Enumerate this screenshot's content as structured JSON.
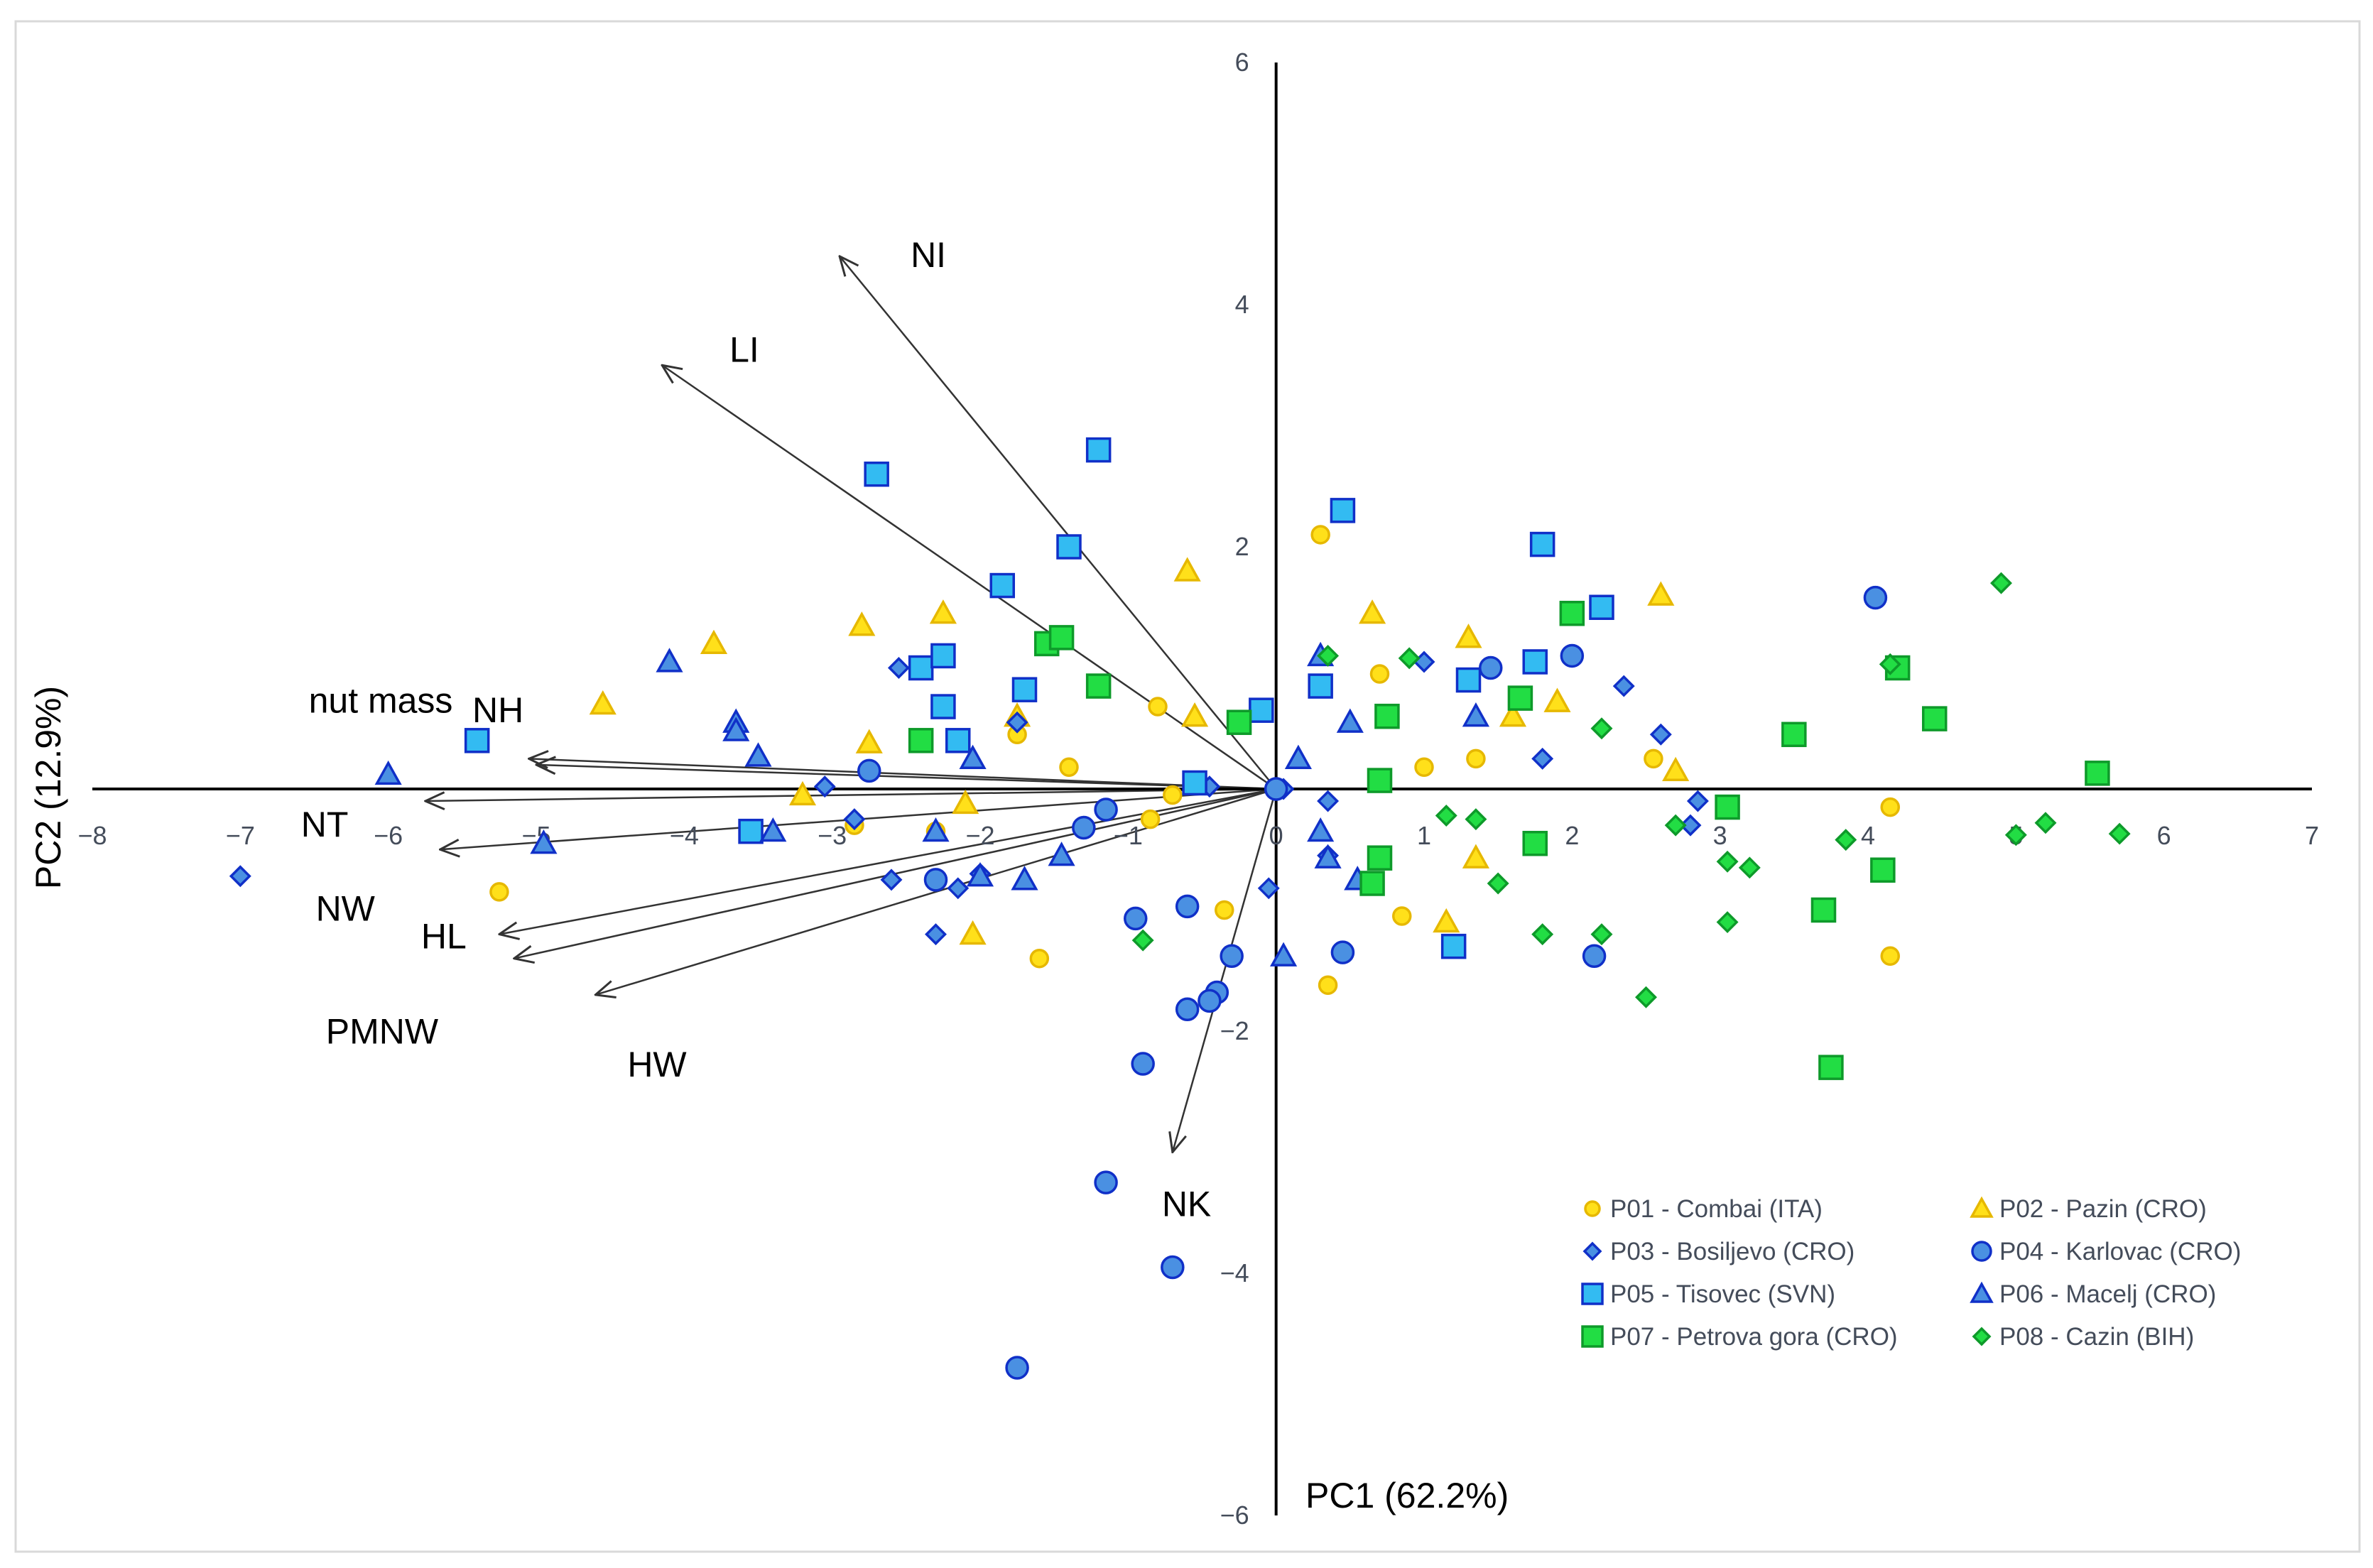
{
  "chart_data": {
    "type": "scatter",
    "subtype": "pca-biplot",
    "xlabel": "PC1 (62.2%)",
    "ylabel": "PC2 (12.9%)",
    "xlim": [
      -8,
      7
    ],
    "ylim": [
      -6,
      6
    ],
    "xticks": [
      -8,
      -7,
      -6,
      -5,
      -4,
      -3,
      -2,
      -1,
      0,
      1,
      2,
      3,
      4,
      5,
      6,
      7
    ],
    "yticks": [
      -6,
      -4,
      -2,
      2,
      4,
      6
    ],
    "x_tick_labels": [
      "−8",
      "−7",
      "−6",
      "−5",
      "−4",
      "−3",
      "−2",
      "−1",
      "0",
      "1",
      "2",
      "3",
      "4",
      "5",
      "6",
      "7"
    ],
    "y_tick_labels": [
      "−6",
      "−4",
      "−2",
      "2",
      "4",
      "6"
    ],
    "grid": false,
    "legend_position": "bottom-right",
    "loadings": [
      {
        "name": "NI",
        "x": -2.95,
        "y": 4.4
      },
      {
        "name": "LI",
        "x": -4.15,
        "y": 3.5
      },
      {
        "name": "NH",
        "x": -5.0,
        "y": 0.2
      },
      {
        "name": "nut mass",
        "x": -5.05,
        "y": 0.25
      },
      {
        "name": "NT",
        "x": -5.75,
        "y": -0.1
      },
      {
        "name": "NW",
        "x": -5.65,
        "y": -0.5
      },
      {
        "name": "HL",
        "x": -5.25,
        "y": -1.2
      },
      {
        "name": "PMNW",
        "x": -5.15,
        "y": -1.4
      },
      {
        "name": "HW",
        "x": -4.6,
        "y": -1.7
      },
      {
        "name": "NK",
        "x": -0.7,
        "y": -3.0
      }
    ],
    "series": [
      {
        "name": "P01 - Combai (ITA)",
        "marker": "circle",
        "color": "#FFE01A",
        "edge": "#E6B800",
        "points": [
          [
            0.3,
            2.1
          ],
          [
            0.7,
            0.95
          ],
          [
            1.35,
            0.25
          ],
          [
            1.0,
            0.18
          ],
          [
            -0.8,
            0.68
          ],
          [
            -1.75,
            0.45
          ],
          [
            -1.4,
            0.18
          ],
          [
            -0.7,
            -0.05
          ],
          [
            -0.85,
            -0.25
          ],
          [
            -2.85,
            -0.3
          ],
          [
            -5.25,
            -0.85
          ],
          [
            -2.3,
            -0.35
          ],
          [
            -0.35,
            -1.0
          ],
          [
            -1.6,
            -1.4
          ],
          [
            0.85,
            -1.05
          ],
          [
            0.35,
            -1.62
          ],
          [
            2.55,
            0.25
          ],
          [
            4.15,
            -0.15
          ],
          [
            4.15,
            -1.38
          ]
        ]
      },
      {
        "name": "P02 - Pazin (CRO)",
        "marker": "triangle",
        "color": "#FFE01A",
        "edge": "#E6B800",
        "points": [
          [
            -0.6,
            1.8
          ],
          [
            -2.25,
            1.45
          ],
          [
            -2.8,
            1.35
          ],
          [
            -3.8,
            1.2
          ],
          [
            -4.55,
            0.7
          ],
          [
            -2.75,
            0.38
          ],
          [
            -1.75,
            0.6
          ],
          [
            -0.55,
            0.6
          ],
          [
            0.65,
            1.45
          ],
          [
            1.3,
            1.25
          ],
          [
            1.6,
            0.6
          ],
          [
            1.9,
            0.72
          ],
          [
            2.6,
            1.6
          ],
          [
            2.7,
            0.15
          ],
          [
            -3.2,
            -0.05
          ],
          [
            -2.1,
            -0.12
          ],
          [
            -2.05,
            -1.2
          ],
          [
            1.15,
            -1.1
          ],
          [
            1.35,
            -0.57
          ]
        ]
      },
      {
        "name": "P03 - Bosiljevo (CRO)",
        "marker": "diamond",
        "color": "#4A90E2",
        "edge": "#1030C8",
        "points": [
          [
            -2.55,
            1.0
          ],
          [
            -1.75,
            0.55
          ],
          [
            1.0,
            1.05
          ],
          [
            2.35,
            0.85
          ],
          [
            2.6,
            0.45
          ],
          [
            1.8,
            0.25
          ],
          [
            -3.05,
            0.02
          ],
          [
            -2.85,
            -0.25
          ],
          [
            -0.45,
            0.02
          ],
          [
            0.35,
            -0.1
          ],
          [
            0.05,
            0.0
          ],
          [
            2.85,
            -0.1
          ],
          [
            2.8,
            -0.3
          ],
          [
            -2.6,
            -0.75
          ],
          [
            -2.0,
            -0.7
          ],
          [
            -2.15,
            -0.82
          ],
          [
            -2.3,
            -1.2
          ],
          [
            -0.05,
            -0.82
          ],
          [
            0.35,
            -0.55
          ],
          [
            -7.0,
            -0.72
          ]
        ]
      },
      {
        "name": "P04 - Karlovac (CRO)",
        "marker": "circle",
        "color": "#4A90E2",
        "edge": "#1030C8",
        "points": [
          [
            4.05,
            1.58
          ],
          [
            2.0,
            1.1
          ],
          [
            1.45,
            1.0
          ],
          [
            -2.75,
            0.15
          ],
          [
            -1.15,
            -0.17
          ],
          [
            -1.3,
            -0.32
          ],
          [
            -2.3,
            -0.75
          ],
          [
            -0.6,
            -0.97
          ],
          [
            -0.95,
            -1.07
          ],
          [
            -0.3,
            -1.38
          ],
          [
            -0.4,
            -1.68
          ],
          [
            -0.45,
            -1.75
          ],
          [
            -0.6,
            -1.82
          ],
          [
            -0.9,
            -2.27
          ],
          [
            0.45,
            -1.35
          ],
          [
            2.15,
            -1.38
          ],
          [
            -1.15,
            -3.25
          ],
          [
            -0.7,
            -3.95
          ],
          [
            -1.75,
            -4.78
          ],
          [
            0.0,
            0.0
          ]
        ]
      },
      {
        "name": "P05 - Tisovec (SVN)",
        "marker": "square",
        "color": "#33BBF2",
        "edge": "#1030C8",
        "points": [
          [
            -2.7,
            2.6
          ],
          [
            -1.2,
            2.8
          ],
          [
            0.45,
            2.3
          ],
          [
            -1.4,
            2.0
          ],
          [
            -1.85,
            1.68
          ],
          [
            1.8,
            2.02
          ],
          [
            2.2,
            1.5
          ],
          [
            1.75,
            1.05
          ],
          [
            1.3,
            0.9
          ],
          [
            0.3,
            0.85
          ],
          [
            -0.1,
            0.65
          ],
          [
            -2.4,
            1.0
          ],
          [
            -2.25,
            1.1
          ],
          [
            -2.25,
            0.68
          ],
          [
            -1.7,
            0.82
          ],
          [
            -2.15,
            0.4
          ],
          [
            -5.4,
            0.4
          ],
          [
            -3.55,
            -0.35
          ],
          [
            -0.55,
            0.05
          ],
          [
            1.2,
            -1.3
          ]
        ]
      },
      {
        "name": "P06 - Macelj (CRO)",
        "marker": "triangle",
        "color": "#4A90E2",
        "edge": "#1030C8",
        "points": [
          [
            -4.1,
            1.05
          ],
          [
            -3.65,
            0.55
          ],
          [
            -3.65,
            0.48
          ],
          [
            -3.5,
            0.27
          ],
          [
            -2.05,
            0.25
          ],
          [
            -6.0,
            0.12
          ],
          [
            -4.95,
            -0.45
          ],
          [
            -3.4,
            -0.35
          ],
          [
            -2.3,
            -0.35
          ],
          [
            -2.0,
            -0.72
          ],
          [
            -1.7,
            -0.75
          ],
          [
            -1.45,
            -0.55
          ],
          [
            0.15,
            0.25
          ],
          [
            0.3,
            1.1
          ],
          [
            0.5,
            0.55
          ],
          [
            1.35,
            0.6
          ],
          [
            0.3,
            -0.35
          ],
          [
            0.35,
            -0.57
          ],
          [
            0.55,
            -0.75
          ],
          [
            0.05,
            -1.38
          ]
        ]
      },
      {
        "name": "P07 - Petrova gora (CRO)",
        "marker": "square",
        "color": "#22DD44",
        "edge": "#0E9A2A",
        "points": [
          [
            -1.55,
            1.2
          ],
          [
            -1.45,
            1.25
          ],
          [
            -1.2,
            0.85
          ],
          [
            -0.25,
            0.55
          ],
          [
            0.75,
            0.6
          ],
          [
            0.7,
            0.07
          ],
          [
            1.65,
            0.75
          ],
          [
            2.0,
            1.45
          ],
          [
            3.5,
            0.45
          ],
          [
            4.2,
            1.0
          ],
          [
            4.45,
            0.58
          ],
          [
            5.55,
            0.13
          ],
          [
            -2.4,
            0.4
          ],
          [
            3.05,
            -0.15
          ],
          [
            1.75,
            -0.45
          ],
          [
            0.7,
            -0.57
          ],
          [
            0.65,
            -0.78
          ],
          [
            3.7,
            -1.0
          ],
          [
            4.1,
            -0.67
          ],
          [
            3.75,
            -2.3
          ]
        ]
      },
      {
        "name": "P08 - Cazin (BIH)",
        "marker": "diamond",
        "color": "#22DD44",
        "edge": "#0E9A2A",
        "points": [
          [
            4.9,
            1.7
          ],
          [
            4.15,
            1.03
          ],
          [
            0.35,
            1.1
          ],
          [
            0.9,
            1.08
          ],
          [
            2.2,
            0.5
          ],
          [
            1.15,
            -0.22
          ],
          [
            1.35,
            -0.25
          ],
          [
            2.7,
            -0.3
          ],
          [
            3.05,
            -0.6
          ],
          [
            3.2,
            -0.65
          ],
          [
            3.85,
            -0.42
          ],
          [
            5.0,
            -0.38
          ],
          [
            5.2,
            -0.28
          ],
          [
            5.7,
            -0.37
          ],
          [
            1.5,
            -0.78
          ],
          [
            1.8,
            -1.2
          ],
          [
            2.2,
            -1.2
          ],
          [
            3.05,
            -1.1
          ],
          [
            2.5,
            -1.72
          ],
          [
            -0.9,
            -1.25
          ]
        ]
      }
    ]
  }
}
